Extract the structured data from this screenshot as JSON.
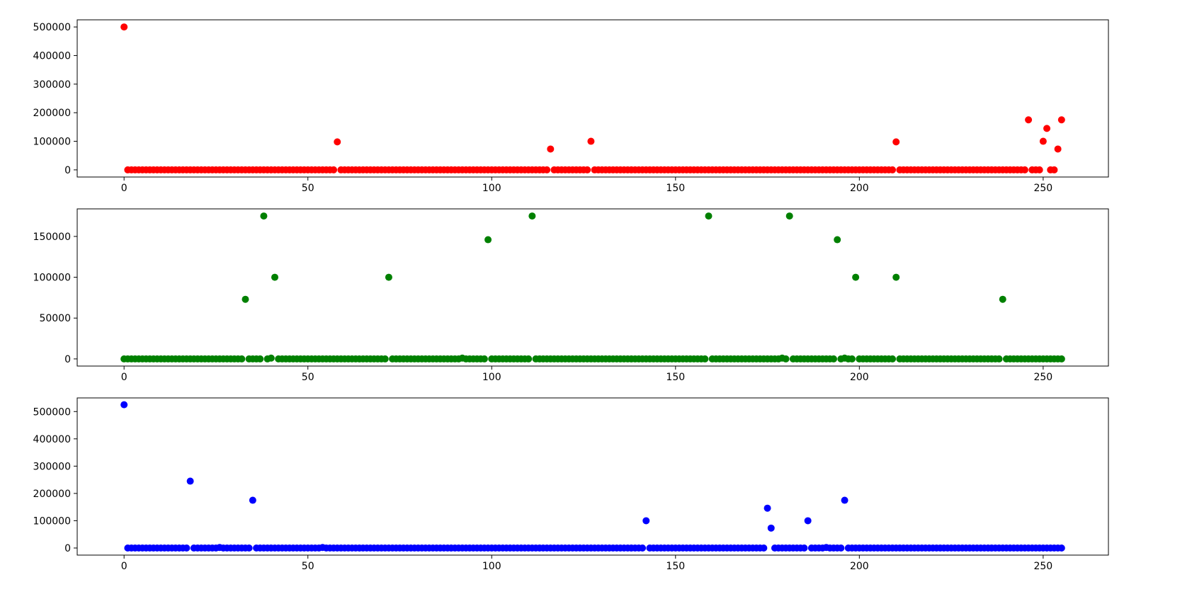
{
  "chart_data": [
    {
      "type": "scatter",
      "color": "#ff0000",
      "x_range": [
        0,
        255
      ],
      "xlim": [
        -12.75,
        267.75
      ],
      "ylim": [
        -25000,
        525000
      ],
      "x_ticks": [
        0,
        50,
        100,
        150,
        200,
        250
      ],
      "y_ticks": [
        0,
        100000,
        200000,
        300000,
        400000,
        500000
      ],
      "x_tick_labels": [
        "0",
        "50",
        "100",
        "150",
        "200",
        "250"
      ],
      "y_tick_labels": [
        "0",
        "100000",
        "200000",
        "300000",
        "400000",
        "500000"
      ],
      "grid": false,
      "base_value": 0,
      "outliers": [
        {
          "x": 0,
          "y": 500000
        },
        {
          "x": 58,
          "y": 98000
        },
        {
          "x": 116,
          "y": 73000
        },
        {
          "x": 127,
          "y": 100000
        },
        {
          "x": 210,
          "y": 98000
        },
        {
          "x": 246,
          "y": 175000
        },
        {
          "x": 250,
          "y": 100000
        },
        {
          "x": 251,
          "y": 145000
        },
        {
          "x": 254,
          "y": 73000
        },
        {
          "x": 255,
          "y": 175000
        }
      ]
    },
    {
      "type": "scatter",
      "color": "#008000",
      "x_range": [
        0,
        255
      ],
      "xlim": [
        -12.75,
        267.75
      ],
      "ylim": [
        -8750,
        183750
      ],
      "x_ticks": [
        0,
        50,
        100,
        150,
        200,
        250
      ],
      "y_ticks": [
        0,
        50000,
        100000,
        150000
      ],
      "x_tick_labels": [
        "0",
        "50",
        "100",
        "150",
        "200",
        "250"
      ],
      "y_tick_labels": [
        "0",
        "50000",
        "100000",
        "150000"
      ],
      "grid": false,
      "base_value": 0,
      "outliers": [
        {
          "x": 33,
          "y": 73000
        },
        {
          "x": 38,
          "y": 175000
        },
        {
          "x": 40,
          "y": 1000
        },
        {
          "x": 41,
          "y": 100000
        },
        {
          "x": 72,
          "y": 100000
        },
        {
          "x": 92,
          "y": 1000
        },
        {
          "x": 99,
          "y": 146000
        },
        {
          "x": 111,
          "y": 175000
        },
        {
          "x": 159,
          "y": 175000
        },
        {
          "x": 179,
          "y": 1000
        },
        {
          "x": 181,
          "y": 175000
        },
        {
          "x": 194,
          "y": 146000
        },
        {
          "x": 196,
          "y": 1000
        },
        {
          "x": 199,
          "y": 100000
        },
        {
          "x": 210,
          "y": 100000
        },
        {
          "x": 239,
          "y": 73000
        }
      ]
    },
    {
      "type": "scatter",
      "color": "#0000ff",
      "x_range": [
        0,
        255
      ],
      "xlim": [
        -12.75,
        267.75
      ],
      "ylim": [
        -26000,
        550000
      ],
      "x_ticks": [
        0,
        50,
        100,
        150,
        200,
        250
      ],
      "y_ticks": [
        0,
        100000,
        200000,
        300000,
        400000,
        500000
      ],
      "x_tick_labels": [
        "0",
        "50",
        "100",
        "150",
        "200",
        "250"
      ],
      "y_tick_labels": [
        "0",
        "100000",
        "200000",
        "300000",
        "400000",
        "500000"
      ],
      "grid": false,
      "base_value": 0,
      "outliers": [
        {
          "x": 0,
          "y": 525000
        },
        {
          "x": 18,
          "y": 245000
        },
        {
          "x": 26,
          "y": 2000
        },
        {
          "x": 35,
          "y": 175000
        },
        {
          "x": 54,
          "y": 2000
        },
        {
          "x": 142,
          "y": 100000
        },
        {
          "x": 175,
          "y": 146000
        },
        {
          "x": 176,
          "y": 73000
        },
        {
          "x": 186,
          "y": 100000
        },
        {
          "x": 191,
          "y": 2000
        },
        {
          "x": 196,
          "y": 175000
        }
      ]
    }
  ]
}
